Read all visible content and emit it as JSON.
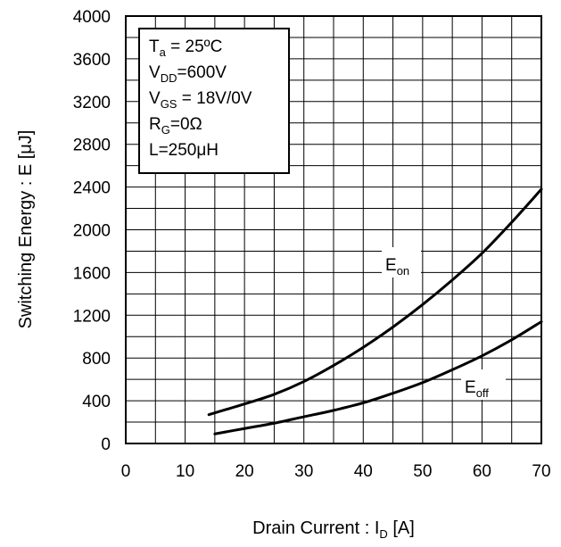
{
  "chart_data": {
    "type": "line",
    "xlabel": "Drain Current : I",
    "xlabel_sub": "D",
    "xlabel_unit": " [A]",
    "ylabel": "Switching Energy : E [μJ]",
    "xlim": [
      0,
      70
    ],
    "ylim": [
      0,
      4000
    ],
    "x_ticks": [
      "0",
      "10",
      "20",
      "30",
      "40",
      "50",
      "60",
      "70"
    ],
    "y_ticks": [
      "0",
      "400",
      "800",
      "1200",
      "1600",
      "2000",
      "2400",
      "2800",
      "3200",
      "3600",
      "4000"
    ],
    "grid": true,
    "conditions": [
      {
        "main": "T",
        "sub": "a",
        "rest": " = 25ºC"
      },
      {
        "main": "V",
        "sub": "DD",
        "rest": "=600V"
      },
      {
        "main": "V",
        "sub": "GS",
        "rest": " = 18V/0V"
      },
      {
        "main": "R",
        "sub": "G",
        "rest": "=0Ω"
      },
      {
        "main": "L=250μH",
        "sub": "",
        "rest": ""
      }
    ],
    "series": [
      {
        "name": "E",
        "name_sub": "on",
        "x": [
          14,
          20,
          25,
          30,
          35,
          40,
          45,
          50,
          55,
          60,
          65,
          70
        ],
        "y": [
          270,
          370,
          460,
          580,
          730,
          900,
          1090,
          1300,
          1530,
          1780,
          2070,
          2380
        ]
      },
      {
        "name": "E",
        "name_sub": "off",
        "x": [
          15,
          20,
          25,
          30,
          35,
          40,
          45,
          50,
          55,
          60,
          65,
          70
        ],
        "y": [
          90,
          140,
          190,
          250,
          310,
          380,
          470,
          570,
          690,
          820,
          970,
          1140
        ]
      }
    ]
  }
}
